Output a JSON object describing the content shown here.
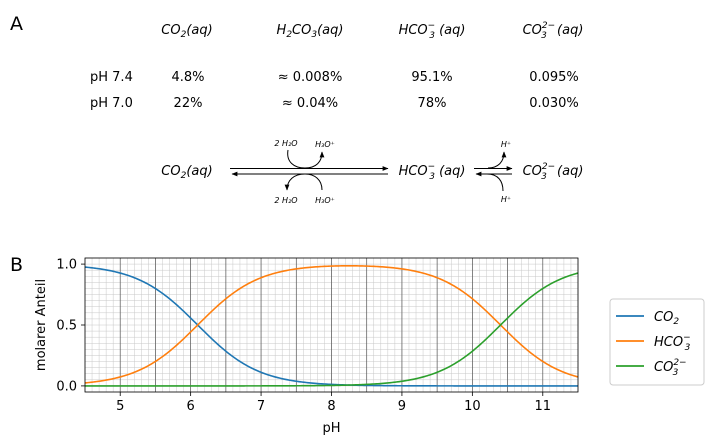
{
  "panel_a": {
    "label": "A",
    "columns": [
      {
        "base": "CO",
        "sub": "2",
        "sup": "",
        "tail": "(aq)"
      },
      {
        "base": "H",
        "sub": "2",
        "mid": "CO",
        "sub2": "3",
        "tail": "(aq)"
      },
      {
        "base": "HCO",
        "sub": "3",
        "sup": "−",
        "tail": " (aq)"
      },
      {
        "base": "CO",
        "sub": "3",
        "sup": "2−",
        "tail": " (aq)"
      }
    ],
    "rows": [
      {
        "label": "pH 7.4",
        "values": [
          "4.8%",
          "≈ 0.008%",
          "95.1%",
          "0.095%"
        ]
      },
      {
        "label": "pH 7.0",
        "values": [
          "22%",
          "≈ 0.04%",
          "78%",
          "0.030%"
        ]
      }
    ],
    "equilibrium": {
      "left": {
        "base": "CO",
        "sub": "2",
        "tail": "(aq)"
      },
      "middle": {
        "base": "HCO",
        "sub": "3",
        "sup": "−",
        "tail": " (aq)"
      },
      "right": {
        "base": "CO",
        "sub": "3",
        "sup": "2−",
        "tail": " (aq)"
      },
      "top_water": "2 H₂O",
      "top_hydronium": "H₃O⁺",
      "bottom_water": "2 H₂O",
      "bottom_hydronium": "H₃O⁺",
      "top_proton": "H⁺",
      "bottom_proton": "H⁺"
    }
  },
  "panel_b": {
    "label": "B"
  },
  "chart_data": {
    "type": "line",
    "title": "",
    "xlabel": "pH",
    "ylabel": "molarer Anteil",
    "xlim": [
      4.5,
      11.5
    ],
    "ylim": [
      -0.05,
      1.05
    ],
    "xticks": [
      5,
      6,
      7,
      8,
      9,
      10,
      11
    ],
    "yticks": [
      0.0,
      0.5,
      1.0
    ],
    "ytick_labels": [
      "0.0",
      "0.5",
      "1.0"
    ],
    "grid": true,
    "legend_position": "right",
    "model": {
      "pKa1": 6.1,
      "pKa2": 10.4
    },
    "series": [
      {
        "name": "CO2",
        "label_base": "CO",
        "label_sub": "2",
        "label_sup": "",
        "color": "#1f77b4"
      },
      {
        "name": "HCO3-",
        "label_base": "HCO",
        "label_sub": "3",
        "label_sup": "−",
        "color": "#ff7f0e"
      },
      {
        "name": "CO3 2-",
        "label_base": "CO",
        "label_sub": "3",
        "label_sup": "2−",
        "color": "#2ca02c"
      }
    ]
  }
}
